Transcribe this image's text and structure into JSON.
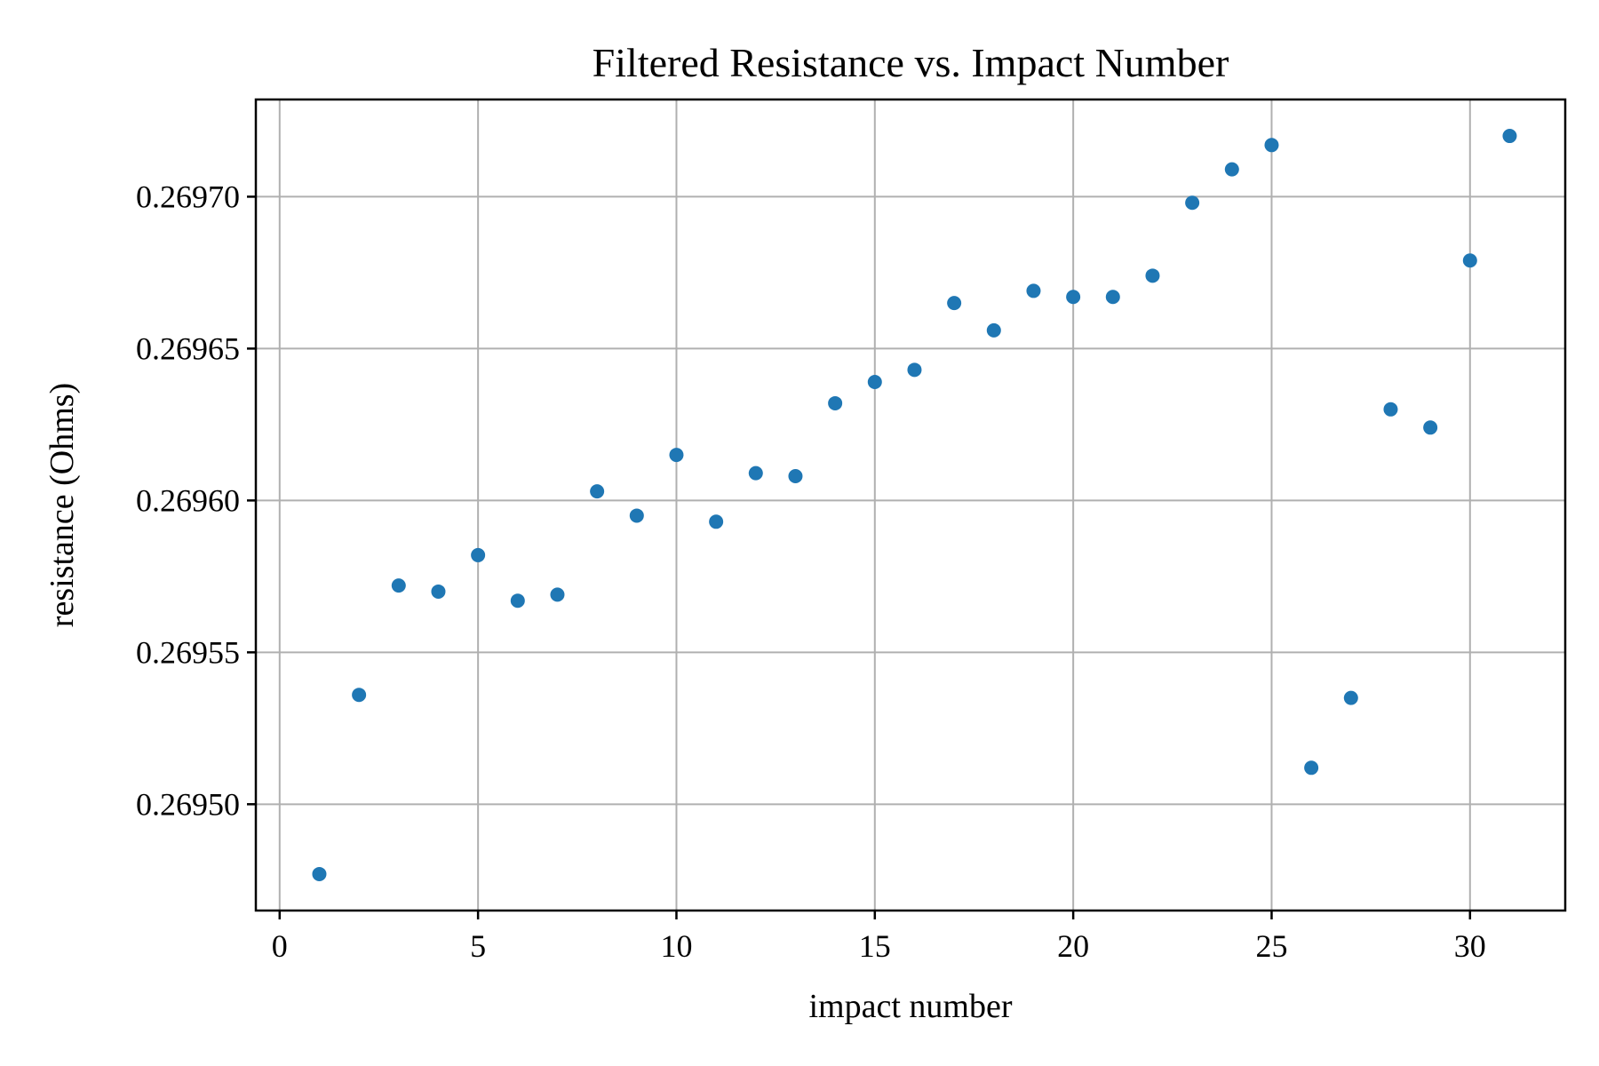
{
  "chart_data": {
    "type": "scatter",
    "title": "Filtered Resistance vs. Impact Number",
    "xlabel": "impact number",
    "ylabel": "resistance (Ohms)",
    "xlim": [
      -0.6,
      32.4
    ],
    "ylim": [
      0.269465,
      0.269732
    ],
    "xticks": [
      0,
      5,
      10,
      15,
      20,
      25,
      30
    ],
    "xtick_labels": [
      "0",
      "5",
      "10",
      "15",
      "20",
      "25",
      "30"
    ],
    "yticks": [
      0.2695,
      0.26955,
      0.2696,
      0.26965,
      0.2697
    ],
    "ytick_labels": [
      "0.26950",
      "0.26955",
      "0.26960",
      "0.26965",
      "0.26970"
    ],
    "grid": true,
    "color": "#1f77b4",
    "series": [
      {
        "x": [
          1,
          2,
          3,
          4,
          5,
          6,
          7,
          8,
          9,
          10,
          11,
          12,
          13,
          14,
          15,
          16,
          17,
          18,
          19,
          20,
          21,
          22,
          23,
          24,
          25,
          26,
          27,
          28,
          29,
          30,
          31
        ],
        "y": [
          0.269477,
          0.269536,
          0.269572,
          0.26957,
          0.269582,
          0.269567,
          0.269569,
          0.269603,
          0.269595,
          0.269615,
          0.269593,
          0.269609,
          0.269608,
          0.269632,
          0.269639,
          0.269643,
          0.269665,
          0.269656,
          0.269669,
          0.269667,
          0.269667,
          0.269674,
          0.269698,
          0.269709,
          0.269717,
          0.269512,
          0.269535,
          0.26963,
          0.269624,
          0.269679,
          0.26972
        ]
      }
    ]
  }
}
